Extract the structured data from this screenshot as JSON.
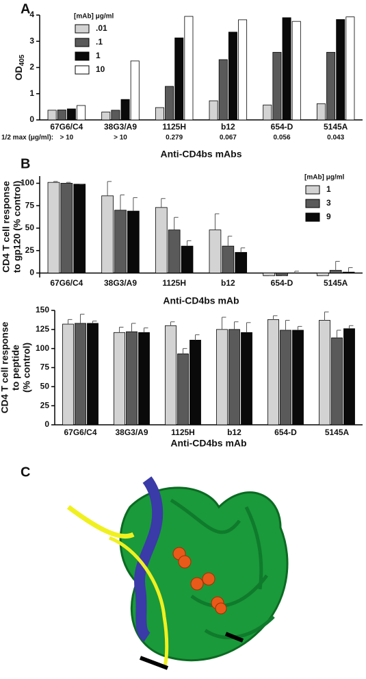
{
  "chart_data": [
    {
      "type": "bar",
      "panel_label": "A",
      "y_label": "OD",
      "y_label_sub": "405",
      "x_label": "Anti-CD4bs mAbs",
      "categories": [
        "67G6/C4",
        "38G3/A9",
        "1125H",
        "b12",
        "654-D",
        "5145A"
      ],
      "half_max_label": "1/2 max (μg/ml):",
      "half_max_values": [
        "> 10",
        "> 10",
        "0.279",
        "0.067",
        "0.056",
        "0.043"
      ],
      "legend_title": "[mAb] μg/ml",
      "legend": "upper left",
      "series": [
        {
          "name": ".01",
          "color": "#d3d3d3",
          "values": [
            0.37,
            0.3,
            0.47,
            0.73,
            0.57,
            0.62
          ]
        },
        {
          "name": ".1",
          "color": "#5a5a5a",
          "values": [
            0.38,
            0.37,
            1.28,
            2.3,
            2.58,
            2.58
          ]
        },
        {
          "name": "1",
          "color": "#0a0a0a",
          "values": [
            0.42,
            0.78,
            3.13,
            3.35,
            3.9,
            3.83
          ]
        },
        {
          "name": "10",
          "color": "#ffffff",
          "values": [
            0.55,
            2.25,
            3.95,
            3.82,
            3.76,
            3.93
          ]
        }
      ],
      "ylim": [
        0,
        4
      ],
      "yticks": [
        0,
        1,
        2,
        3,
        4
      ]
    },
    {
      "type": "bar",
      "panel_label": "B",
      "y_label": [
        "CD4 T cell response",
        "to gp120 (% control)"
      ],
      "x_label": "Anti-CD4bs mAb",
      "categories": [
        "67G6/C4",
        "38G3/A9",
        "1125H",
        "b12",
        "654-D",
        "5145A"
      ],
      "legend_title": "[mAb] μg/ml",
      "legend": "upper right",
      "series": [
        {
          "name": "1",
          "color": "#d3d3d3",
          "values": [
            101,
            86,
            73,
            48,
            -3,
            -3
          ],
          "errors": [
            1,
            16,
            10,
            18,
            0,
            0
          ]
        },
        {
          "name": "3",
          "color": "#5a5a5a",
          "values": [
            100,
            70,
            48,
            30,
            -3,
            3
          ],
          "errors": [
            1,
            17,
            14,
            11,
            0,
            10
          ]
        },
        {
          "name": "9",
          "color": "#0a0a0a",
          "values": [
            99,
            69,
            30,
            23,
            0,
            1
          ],
          "errors": [
            0,
            15,
            6,
            5,
            2,
            5
          ]
        }
      ],
      "ylim": [
        -5,
        108
      ],
      "yticks": [
        0,
        25,
        50,
        75,
        100
      ]
    },
    {
      "type": "bar",
      "y_label": [
        "CD4 T cell response",
        "to peptide",
        "(% control)"
      ],
      "x_label": "Anti-CD4bs mAb",
      "categories": [
        "67G6/C4",
        "38G3/A9",
        "1125H",
        "b12",
        "654-D",
        "5145A"
      ],
      "series": [
        {
          "color": "#d3d3d3",
          "values": [
            132,
            121,
            130,
            125,
            138,
            137
          ],
          "errors": [
            6,
            7,
            5,
            16,
            5,
            11
          ]
        },
        {
          "color": "#5a5a5a",
          "values": [
            133,
            122,
            93,
            125,
            124,
            114
          ],
          "errors": [
            12,
            11,
            7,
            10,
            13,
            10
          ]
        },
        {
          "color": "#0a0a0a",
          "values": [
            133,
            121,
            111,
            121,
            124,
            126
          ],
          "errors": [
            3,
            6,
            7,
            13,
            5,
            4
          ]
        }
      ],
      "ylim": [
        0,
        150
      ],
      "yticks": [
        0,
        25,
        50,
        75,
        100,
        125,
        150
      ]
    }
  ],
  "panel_c": {
    "label": "C"
  }
}
